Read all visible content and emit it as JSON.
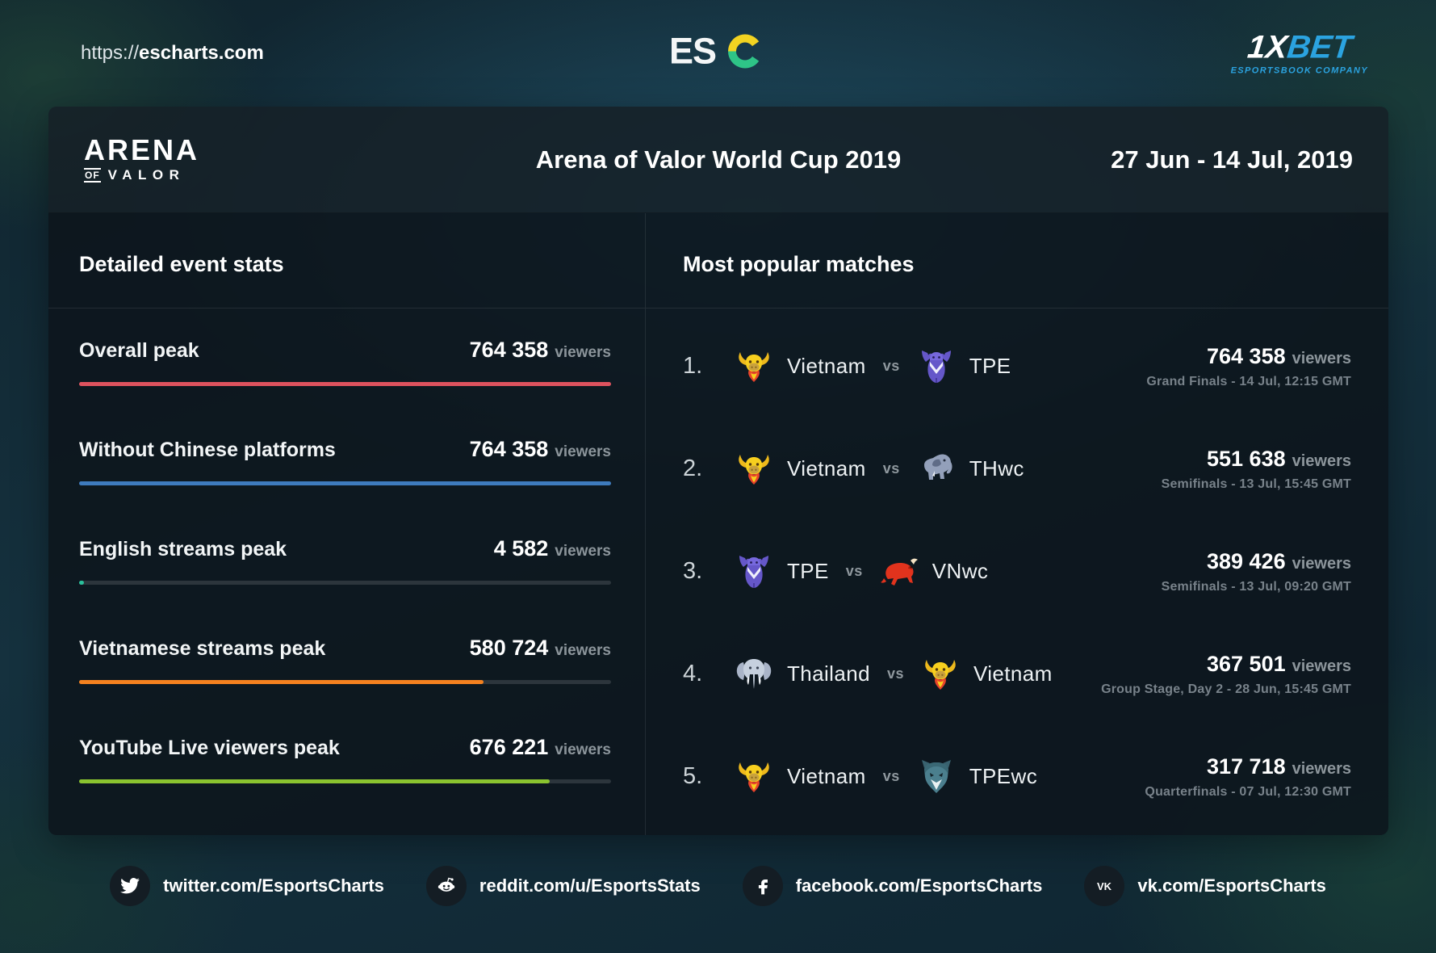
{
  "topbar": {
    "url_prefix": "https://",
    "url_domain": "escharts.com",
    "esc_text": "ES",
    "sponsor": {
      "part_white": "1X",
      "part_cyan": "BET",
      "tagline": "ESPORTSBOOK COMPANY"
    }
  },
  "header": {
    "game_logo_line1": "ARENA",
    "game_logo_of": "OF",
    "game_logo_line2": "VALOR",
    "title": "Arena of Valor World Cup 2019",
    "dates": "27 Jun - 14 Jul, 2019"
  },
  "stats_panel": {
    "heading": "Detailed event stats",
    "viewers_label": "viewers",
    "rows": [
      {
        "label": "Overall peak",
        "value": "764 358",
        "percent": 100,
        "color": "#de525e"
      },
      {
        "label": "Without Chinese platforms",
        "value": "764 358",
        "percent": 100,
        "color": "#3e7bbd"
      },
      {
        "label": "English streams peak",
        "value": "4 582",
        "percent": 0.6,
        "color": "#2abf9b"
      },
      {
        "label": "Vietnamese streams peak",
        "value": "580 724",
        "percent": 76,
        "color": "#f4811f"
      },
      {
        "label": "YouTube Live viewers peak",
        "value": "676 221",
        "percent": 88.5,
        "color": "#8ac32f"
      }
    ]
  },
  "matches_panel": {
    "heading": "Most popular matches",
    "vs_label": "vs",
    "viewers_label": "viewers",
    "rows": [
      {
        "rank": "1.",
        "team1": {
          "name": "Vietnam",
          "icon": "vn-buffalo"
        },
        "team2": {
          "name": "TPE",
          "icon": "tpe-bear"
        },
        "viewers": "764 358",
        "detail": "Grand Finals - 14 Jul, 12:15 GMT"
      },
      {
        "rank": "2.",
        "team1": {
          "name": "Vietnam",
          "icon": "vn-buffalo"
        },
        "team2": {
          "name": "THwc",
          "icon": "thwc-elephant"
        },
        "viewers": "551 638",
        "detail": "Semifinals - 13 Jul, 15:45 GMT"
      },
      {
        "rank": "3.",
        "team1": {
          "name": "TPE",
          "icon": "tpe-bear"
        },
        "team2": {
          "name": "VNwc",
          "icon": "vnwc-bull"
        },
        "viewers": "389 426",
        "detail": "Semifinals - 13 Jul, 09:20 GMT"
      },
      {
        "rank": "4.",
        "team1": {
          "name": "Thailand",
          "icon": "th-elephant"
        },
        "team2": {
          "name": "Vietnam",
          "icon": "vn-buffalo"
        },
        "viewers": "367 501",
        "detail": "Group Stage, Day 2 - 28 Jun, 15:45 GMT"
      },
      {
        "rank": "5.",
        "team1": {
          "name": "Vietnam",
          "icon": "vn-buffalo"
        },
        "team2": {
          "name": "TPEwc",
          "icon": "tpewc-bear"
        },
        "viewers": "317 718",
        "detail": "Quarterfinals - 07 Jul, 12:30 GMT"
      }
    ]
  },
  "footer": {
    "links": [
      {
        "icon": "twitter",
        "text": "twitter.com/EsportsCharts"
      },
      {
        "icon": "reddit",
        "text": "reddit.com/u/EsportsStats"
      },
      {
        "icon": "facebook",
        "text": "facebook.com/EsportsCharts"
      },
      {
        "icon": "vk",
        "text": "vk.com/EsportsCharts"
      }
    ]
  },
  "colors": {
    "bar_red": "#de525e",
    "bar_blue": "#3e7bbd",
    "bar_teal": "#2abf9b",
    "bar_orange": "#f4811f",
    "bar_green": "#8ac32f",
    "sponsor_cyan": "#2ba3e0",
    "esc_yellow": "#f2d321",
    "esc_green": "#2ec487"
  },
  "chart_data": [
    {
      "type": "bar",
      "orientation": "horizontal",
      "title": "Detailed event stats - Arena of Valor World Cup 2019",
      "categories": [
        "Overall peak",
        "Without Chinese platforms",
        "English streams peak",
        "Vietnamese streams peak",
        "YouTube Live viewers peak"
      ],
      "values": [
        764358,
        764358,
        4582,
        580724,
        676221
      ],
      "unit": "viewers",
      "xlabel": "",
      "ylabel": "",
      "xlim": [
        0,
        764358
      ],
      "grid": false,
      "bar_colors": [
        "#de525e",
        "#3e7bbd",
        "#2abf9b",
        "#f4811f",
        "#8ac32f"
      ]
    },
    {
      "type": "table",
      "title": "Most popular matches",
      "columns": [
        "rank",
        "team1",
        "team2",
        "peak_viewers",
        "stage_and_time"
      ],
      "rows": [
        [
          "1.",
          "Vietnam",
          "TPE",
          764358,
          "Grand Finals - 14 Jul, 12:15 GMT"
        ],
        [
          "2.",
          "Vietnam",
          "THwc",
          551638,
          "Semifinals - 13 Jul, 15:45 GMT"
        ],
        [
          "3.",
          "TPE",
          "VNwc",
          389426,
          "Semifinals - 13 Jul, 09:20 GMT"
        ],
        [
          "4.",
          "Thailand",
          "Vietnam",
          367501,
          "Group Stage, Day 2 - 28 Jun, 15:45 GMT"
        ],
        [
          "5.",
          "Vietnam",
          "TPEwc",
          317718,
          "Quarterfinals - 07 Jul, 12:30 GMT"
        ]
      ]
    }
  ]
}
